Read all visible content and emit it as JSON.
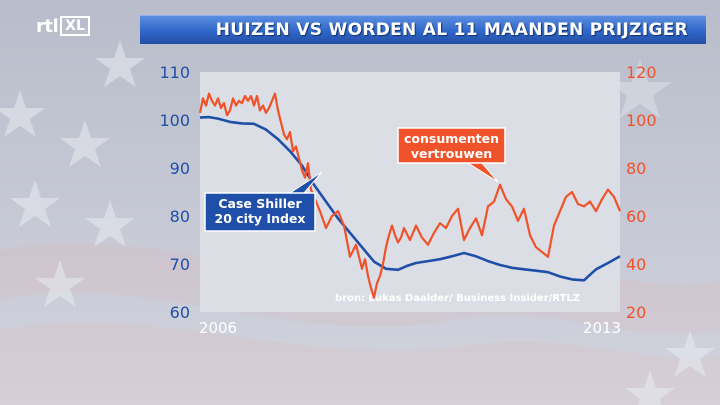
{
  "header": {
    "logo_rtl": "rtl",
    "logo_xl": "XL",
    "title": "HUIZEN VS WORDEN AL 11 MAANDEN PRIJZIGER"
  },
  "colors": {
    "case_shiller": "#1f4fa8",
    "consumer_confidence": "#f0522a",
    "plot_bg": "#dde0e6",
    "title_bar": "#2f66c8"
  },
  "chart_data": {
    "type": "line",
    "x_range": [
      2006,
      2013
    ],
    "x_tick_labels": [
      "2006",
      "2013"
    ],
    "left_axis": {
      "ylim": [
        60,
        110
      ],
      "ticks": [
        "110",
        "100",
        "90",
        "80",
        "70",
        "60"
      ],
      "color": "#1f4fa8"
    },
    "right_axis": {
      "ylim": [
        20,
        120
      ],
      "ticks": [
        "120",
        "100",
        "80",
        "60",
        "40",
        "20"
      ],
      "color": "#f0522a"
    },
    "source": "bron: Lukas Daalder/ Business Insider/RTLZ",
    "grid": false,
    "series": [
      {
        "name": "Case Shiller 20 city Index",
        "axis": "left",
        "color": "#1f4fa8",
        "x": [
          2006.0,
          2006.15,
          2006.3,
          2006.5,
          2006.7,
          2006.9,
          2007.1,
          2007.3,
          2007.5,
          2007.7,
          2007.9,
          2008.1,
          2008.3,
          2008.5,
          2008.7,
          2008.9,
          2009.1,
          2009.3,
          2009.45,
          2009.6,
          2009.8,
          2010.0,
          2010.2,
          2010.4,
          2010.6,
          2010.8,
          2011.0,
          2011.2,
          2011.4,
          2011.6,
          2011.8,
          2012.0,
          2012.2,
          2012.4,
          2012.6,
          2012.8,
          2013.0
        ],
        "values": [
          100.5,
          100.6,
          100.3,
          99.6,
          99.3,
          99.2,
          98.0,
          96.0,
          93.5,
          90.5,
          86.5,
          83.0,
          79.5,
          76.5,
          73.5,
          70.5,
          69.0,
          68.8,
          69.6,
          70.2,
          70.6,
          71.0,
          71.6,
          72.3,
          71.6,
          70.6,
          69.8,
          69.2,
          68.9,
          68.6,
          68.3,
          67.4,
          66.8,
          66.6,
          68.9,
          70.2,
          71.6
        ]
      },
      {
        "name": "consumenten vertrouwen",
        "axis": "right",
        "color": "#f0522a",
        "x": [
          2006.0,
          2006.05,
          2006.1,
          2006.15,
          2006.2,
          2006.25,
          2006.3,
          2006.35,
          2006.4,
          2006.45,
          2006.5,
          2006.55,
          2006.6,
          2006.65,
          2006.7,
          2006.75,
          2006.8,
          2006.85,
          2006.9,
          2006.95,
          2007.0,
          2007.05,
          2007.1,
          2007.15,
          2007.2,
          2007.25,
          2007.3,
          2007.35,
          2007.4,
          2007.45,
          2007.5,
          2007.55,
          2007.6,
          2007.65,
          2007.7,
          2007.75,
          2007.8,
          2007.85,
          2007.9,
          2007.95,
          2008.0,
          2008.1,
          2008.2,
          2008.3,
          2008.4,
          2008.5,
          2008.6,
          2008.7,
          2008.75,
          2008.8,
          2008.85,
          2008.9,
          2008.95,
          2009.0,
          2009.05,
          2009.1,
          2009.15,
          2009.2,
          2009.25,
          2009.3,
          2009.35,
          2009.4,
          2009.5,
          2009.6,
          2009.7,
          2009.8,
          2009.9,
          2010.0,
          2010.1,
          2010.2,
          2010.3,
          2010.4,
          2010.5,
          2010.6,
          2010.7,
          2010.8,
          2010.9,
          2011.0,
          2011.1,
          2011.2,
          2011.3,
          2011.4,
          2011.5,
          2011.6,
          2011.7,
          2011.8,
          2011.9,
          2012.0,
          2012.1,
          2012.2,
          2012.3,
          2012.4,
          2012.5,
          2012.6,
          2012.7,
          2012.8,
          2012.9,
          2013.0
        ],
        "values": [
          103,
          109,
          106,
          111,
          108,
          106,
          109,
          105,
          107,
          102,
          104,
          109,
          106,
          108,
          107,
          110,
          108,
          110,
          106,
          110,
          104,
          106,
          103,
          105,
          108,
          111,
          104,
          99,
          94,
          92,
          95,
          87,
          89,
          84,
          79,
          76,
          82,
          71,
          68,
          65,
          62,
          55,
          60,
          62,
          56,
          43,
          48,
          38,
          42,
          35,
          30,
          26,
          32,
          35,
          40,
          47,
          52,
          56,
          52,
          49,
          51,
          55,
          50,
          56,
          51,
          48,
          53,
          57,
          55,
          60,
          63,
          50,
          55,
          59,
          52,
          64,
          66,
          73,
          67,
          64,
          58,
          63,
          52,
          47,
          45,
          43,
          56,
          62,
          68,
          70,
          65,
          64,
          66,
          62,
          67,
          71,
          68,
          62
        ]
      }
    ],
    "annotations": [
      {
        "text_lines": [
          "Case Shiller",
          "20 city Index"
        ],
        "series": "Case Shiller 20 city Index"
      },
      {
        "text_lines": [
          "consumenten",
          "vertrouwen"
        ],
        "series": "consumenten vertrouwen"
      }
    ]
  }
}
